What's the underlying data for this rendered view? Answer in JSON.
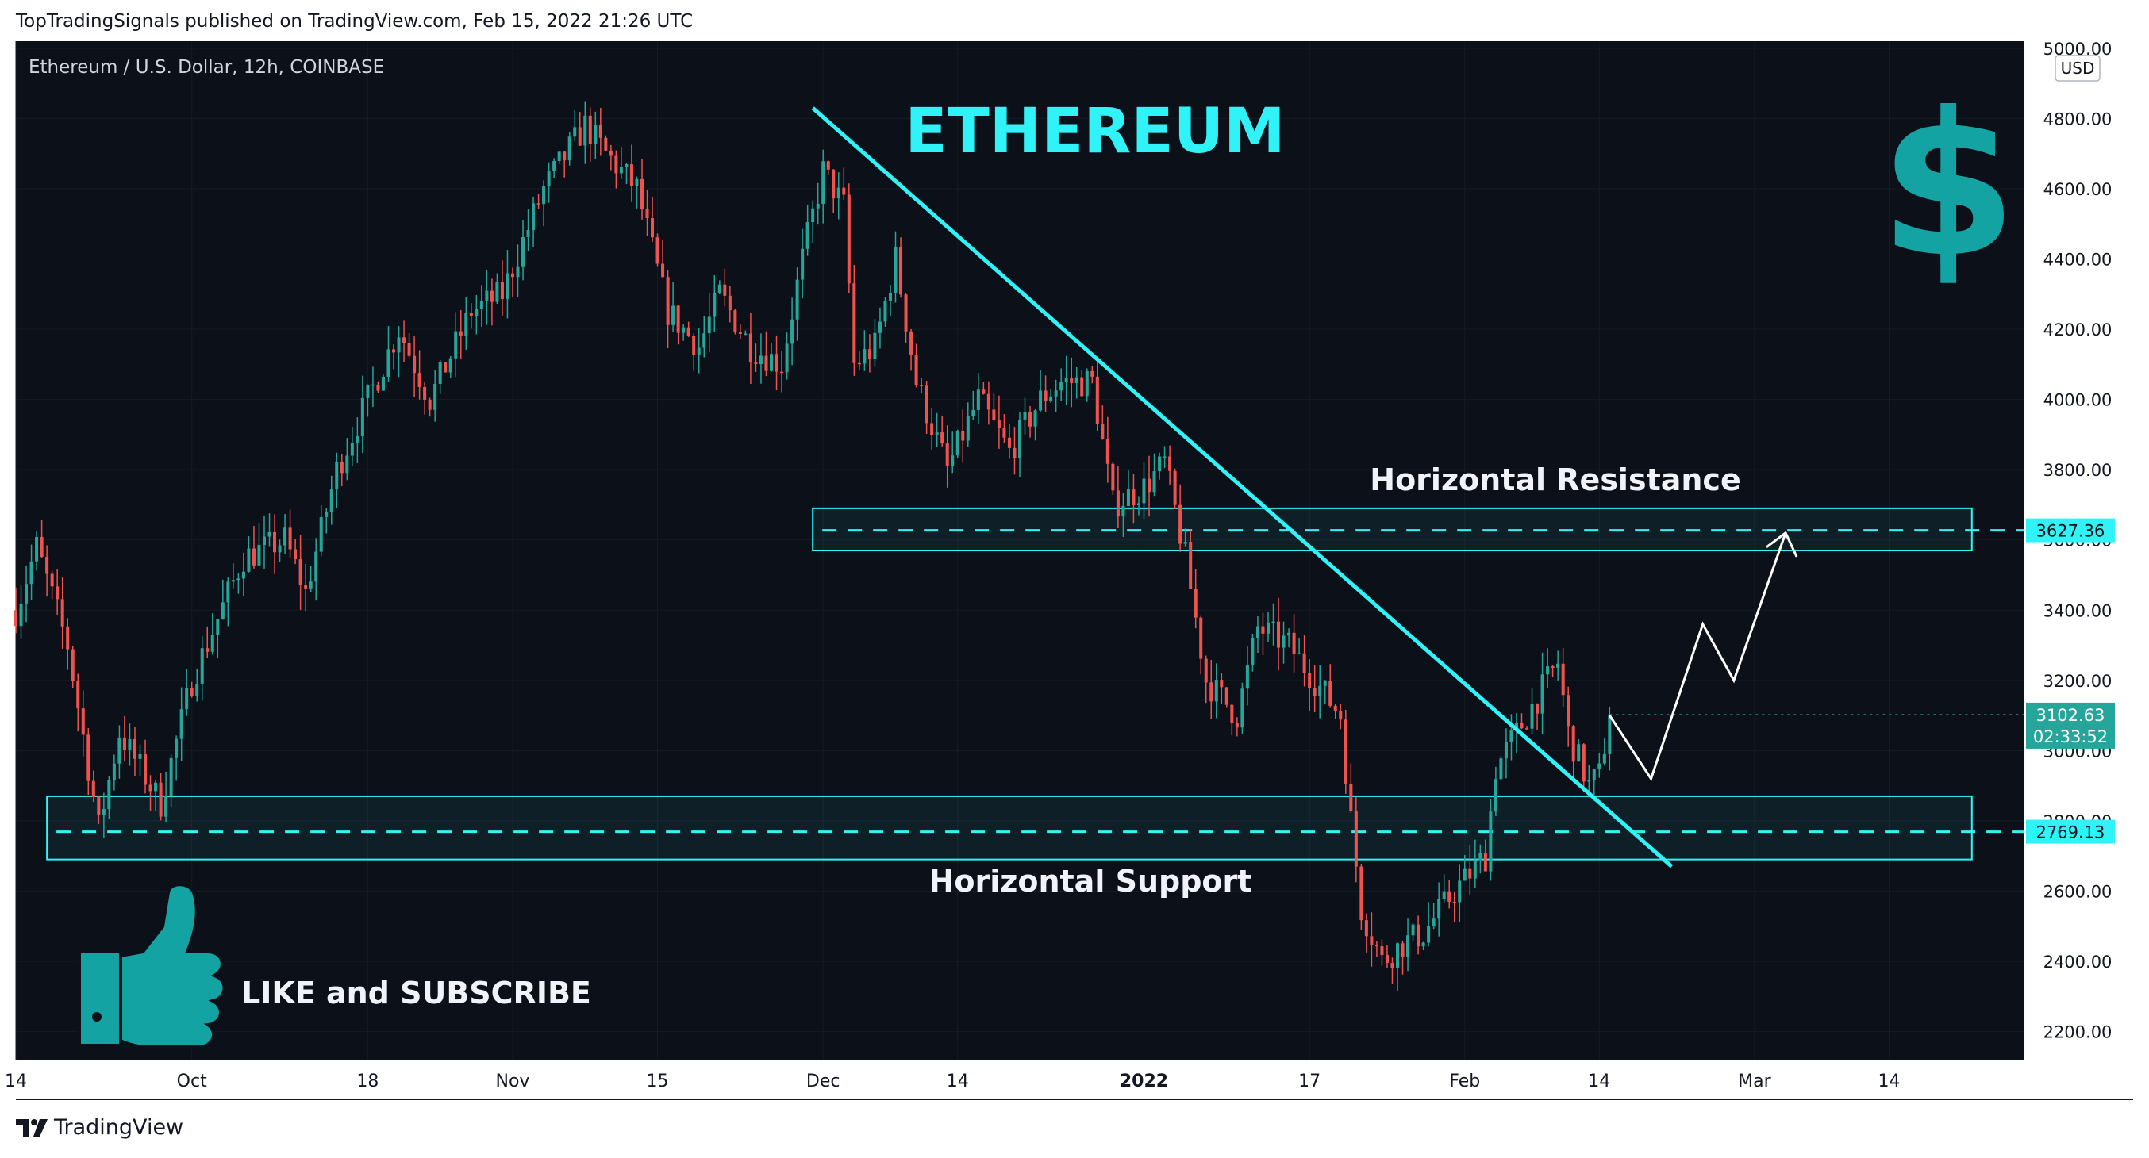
{
  "header": {
    "published_line": "TopTradingSignals published on TradingView.com, Feb 15, 2022 21:26 UTC"
  },
  "footer": {
    "brand": "TradingView",
    "logo_icon": "tradingview-logo-icon"
  },
  "colors": {
    "background": "#0c1018",
    "up": "#26a69a",
    "down": "#ef5350",
    "accent_cyan": "#2ff3f7",
    "logo_teal": "#14a3a3",
    "price_badge": "#26a69a",
    "text_light": "#d1d4dc"
  },
  "chart_data": {
    "type": "candlestick",
    "symbol_title": "Ethereum / U.S. Dollar, 12h, COINBASE",
    "currency": "USD",
    "ylim": [
      2120,
      5020
    ],
    "y_ticks": [
      2200,
      2400,
      2600,
      2800,
      3000,
      3200,
      3400,
      3600,
      3800,
      4000,
      4200,
      4400,
      4600,
      4800,
      5000
    ],
    "y_tick_labels": [
      "2200.00",
      "2400.00",
      "2600.00",
      "2800.00",
      "3000.00",
      "3200.00",
      "3400.00",
      "3600.00",
      "3800.00",
      "4000.00",
      "4200.00",
      "4400.00",
      "4600.00",
      "4800.00",
      "5000.00"
    ],
    "x_range": [
      "2021-09-14",
      "2022-03-27"
    ],
    "x_ticks": [
      {
        "date": "2021-09-14",
        "label": "14",
        "bold": false
      },
      {
        "date": "2021-10-01",
        "label": "Oct",
        "bold": false
      },
      {
        "date": "2021-10-18",
        "label": "18",
        "bold": false
      },
      {
        "date": "2021-11-01",
        "label": "Nov",
        "bold": false
      },
      {
        "date": "2021-11-15",
        "label": "15",
        "bold": false
      },
      {
        "date": "2021-12-01",
        "label": "Dec",
        "bold": false
      },
      {
        "date": "2021-12-14",
        "label": "14",
        "bold": false
      },
      {
        "date": "2022-01-01",
        "label": "2022",
        "bold": true
      },
      {
        "date": "2022-01-17",
        "label": "17",
        "bold": false
      },
      {
        "date": "2022-02-01",
        "label": "Feb",
        "bold": false
      },
      {
        "date": "2022-02-14",
        "label": "14",
        "bold": false
      },
      {
        "date": "2022-03-01",
        "label": "Mar",
        "bold": false
      },
      {
        "date": "2022-03-14",
        "label": "14",
        "bold": false
      }
    ],
    "path_waypoints": [
      {
        "date": "2021-09-14",
        "close": 3400
      },
      {
        "date": "2021-09-16",
        "close": 3580
      },
      {
        "date": "2021-09-19",
        "close": 3300
      },
      {
        "date": "2021-09-22",
        "close": 2780
      },
      {
        "date": "2021-09-24",
        "close": 3050
      },
      {
        "date": "2021-09-28",
        "close": 2850
      },
      {
        "date": "2021-10-01",
        "close": 3200
      },
      {
        "date": "2021-10-06",
        "close": 3550
      },
      {
        "date": "2021-10-10",
        "close": 3600
      },
      {
        "date": "2021-10-12",
        "close": 3450
      },
      {
        "date": "2021-10-15",
        "close": 3800
      },
      {
        "date": "2021-10-21",
        "close": 4200
      },
      {
        "date": "2021-10-24",
        "close": 4000
      },
      {
        "date": "2021-10-28",
        "close": 4250
      },
      {
        "date": "2021-10-31",
        "close": 4300
      },
      {
        "date": "2021-11-04",
        "close": 4600
      },
      {
        "date": "2021-11-08",
        "close": 4780
      },
      {
        "date": "2021-11-10",
        "close": 4700
      },
      {
        "date": "2021-11-13",
        "close": 4600
      },
      {
        "date": "2021-11-16",
        "close": 4250
      },
      {
        "date": "2021-11-19",
        "close": 4150
      },
      {
        "date": "2021-11-21",
        "close": 4300
      },
      {
        "date": "2021-11-24",
        "close": 4150
      },
      {
        "date": "2021-11-27",
        "close": 4100
      },
      {
        "date": "2021-11-29",
        "close": 4400
      },
      {
        "date": "2021-12-01",
        "close": 4650
      },
      {
        "date": "2021-12-03",
        "close": 4550
      },
      {
        "date": "2021-12-04",
        "close": 4100
      },
      {
        "date": "2021-12-06",
        "close": 4150
      },
      {
        "date": "2021-12-08",
        "close": 4400
      },
      {
        "date": "2021-12-10",
        "close": 4050
      },
      {
        "date": "2021-12-13",
        "close": 3800
      },
      {
        "date": "2021-12-16",
        "close": 4000
      },
      {
        "date": "2021-12-19",
        "close": 3850
      },
      {
        "date": "2021-12-22",
        "close": 4000
      },
      {
        "date": "2021-12-24",
        "close": 4050
      },
      {
        "date": "2021-12-27",
        "close": 4050
      },
      {
        "date": "2021-12-29",
        "close": 3700
      },
      {
        "date": "2022-01-01",
        "close": 3750
      },
      {
        "date": "2022-01-03",
        "close": 3820
      },
      {
        "date": "2022-01-05",
        "close": 3550
      },
      {
        "date": "2022-01-07",
        "close": 3200
      },
      {
        "date": "2022-01-10",
        "close": 3100
      },
      {
        "date": "2022-01-12",
        "close": 3350
      },
      {
        "date": "2022-01-15",
        "close": 3300
      },
      {
        "date": "2022-01-18",
        "close": 3180
      },
      {
        "date": "2022-01-20",
        "close": 3100
      },
      {
        "date": "2022-01-21",
        "close": 2800
      },
      {
        "date": "2022-01-22",
        "close": 2550
      },
      {
        "date": "2022-01-24",
        "close": 2400
      },
      {
        "date": "2022-01-26",
        "close": 2450
      },
      {
        "date": "2022-01-28",
        "close": 2480
      },
      {
        "date": "2022-01-31",
        "close": 2600
      },
      {
        "date": "2022-02-03",
        "close": 2700
      },
      {
        "date": "2022-02-04",
        "close": 2950
      },
      {
        "date": "2022-02-06",
        "close": 3050
      },
      {
        "date": "2022-02-08",
        "close": 3150
      },
      {
        "date": "2022-02-10",
        "close": 3250
      },
      {
        "date": "2022-02-11",
        "close": 3050
      },
      {
        "date": "2022-02-13",
        "close": 2900
      },
      {
        "date": "2022-02-14",
        "close": 2930
      },
      {
        "date": "2022-02-15",
        "close": 3102.63
      }
    ],
    "last_price": {
      "value": 3102.63,
      "label": "3102.63",
      "countdown": "02:33:52"
    },
    "levels": [
      {
        "name": "resistance",
        "value": 3627.36,
        "label": "3627.36",
        "zone": [
          3570,
          3690
        ],
        "zone_start": "2021-11-30",
        "zone_end": "2022-03-22"
      },
      {
        "name": "support",
        "value": 2769.13,
        "label": "2769.13",
        "zone": [
          2690,
          2870
        ],
        "zone_start": "2021-09-17",
        "zone_end": "2022-03-22"
      }
    ],
    "trendline": {
      "start": {
        "date": "2021-11-30",
        "price": 4830
      },
      "end": {
        "date": "2022-02-21",
        "price": 2670
      }
    },
    "projection": [
      {
        "date": "2022-02-15",
        "price": 3100
      },
      {
        "date": "2022-02-19",
        "price": 2920
      },
      {
        "date": "2022-02-24",
        "price": 3360
      },
      {
        "date": "2022-02-27",
        "price": 3200
      },
      {
        "date": "2022-03-04",
        "price": 3620
      }
    ],
    "annotations": {
      "title": "ETHEREUM",
      "resistance_label": "Horizontal Resistance",
      "support_label": "Horizontal Support",
      "cta": "LIKE and SUBSCRIBE",
      "dollar_symbol": "$",
      "thumb_icon": "thumbs-up-icon",
      "dollar_icon": "dollar-sign-icon"
    }
  }
}
